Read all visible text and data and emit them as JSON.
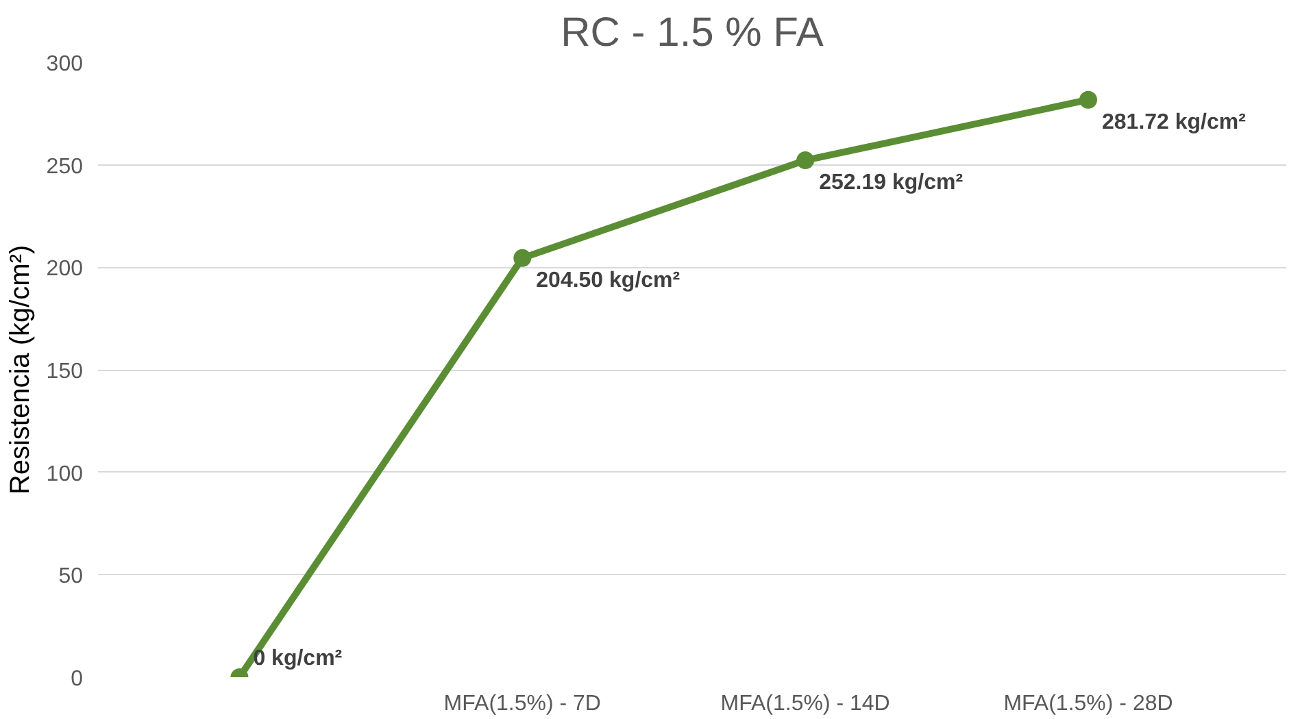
{
  "chart_data": {
    "type": "line",
    "title": "RC - 1.5 % FA",
    "ylabel": "Resistencia (kg/cm²)",
    "categories": [
      null,
      "MFA(1.5%) - 7D",
      "MFA(1.5%) - 14D",
      "MFA(1.5%) - 28D"
    ],
    "series": [
      {
        "color": "#5b8e34",
        "values": [
          0,
          204.5,
          252.19,
          281.72
        ],
        "value_labels": [
          "0 kg/cm²",
          "204.50 kg/cm²",
          "252.19 kg/cm²",
          "281.72 kg/cm²"
        ]
      }
    ],
    "ylim": [
      0,
      300
    ],
    "yticks": [
      0,
      50,
      100,
      150,
      200,
      250,
      300
    ],
    "grid": "y",
    "marker": "circle",
    "line_style": "solid"
  }
}
